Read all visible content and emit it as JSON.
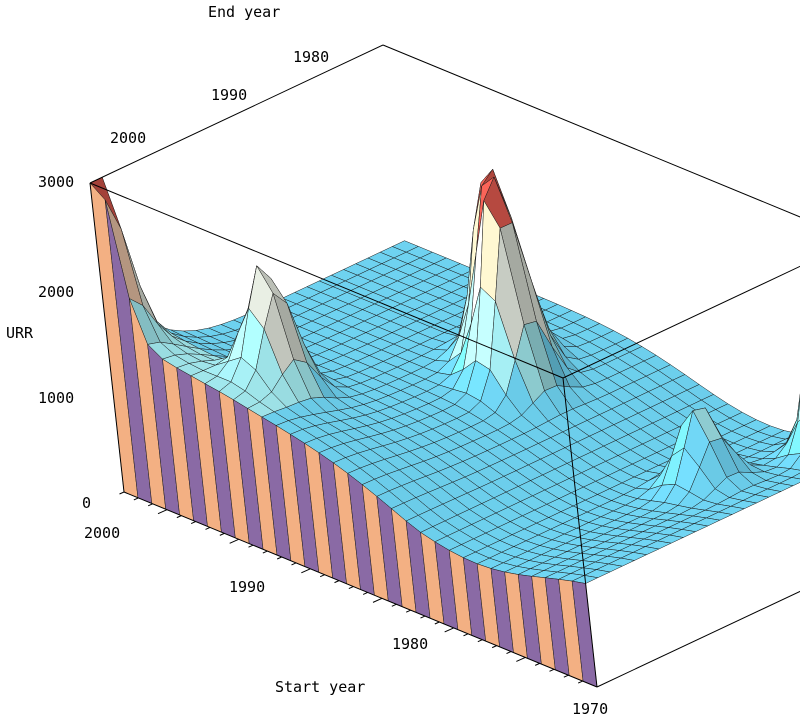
{
  "chart_data": {
    "type": "surface3d",
    "title": "",
    "xlabel": "Start year",
    "ylabel": "End year",
    "zlabel": "URR",
    "start_year_ticks": [
      "2000",
      "1990",
      "1980",
      "1970"
    ],
    "end_year_ticks": [
      "1980",
      "1990",
      "2000"
    ],
    "urr_ticks": [
      "0",
      "1000",
      "2000",
      "3000"
    ],
    "start_year_range": [
      1970,
      2003
    ],
    "end_year_range": [
      1975,
      2003
    ],
    "urr_range": [
      0,
      3000
    ],
    "peaks": [
      {
        "start_year": 2003,
        "end_year": 2003,
        "urr": 3000
      },
      {
        "start_year": 1995,
        "end_year": 1998,
        "urr": 2300
      },
      {
        "start_year": 1990,
        "end_year": 1983,
        "urr": 2800
      },
      {
        "start_year": 1988,
        "end_year": 1985,
        "urr": 2900
      },
      {
        "start_year": 1975,
        "end_year": 1985,
        "urr": 1900
      },
      {
        "start_year": 1972,
        "end_year": 1976,
        "urr": 2800
      }
    ],
    "baseline_urr": 1100
  }
}
